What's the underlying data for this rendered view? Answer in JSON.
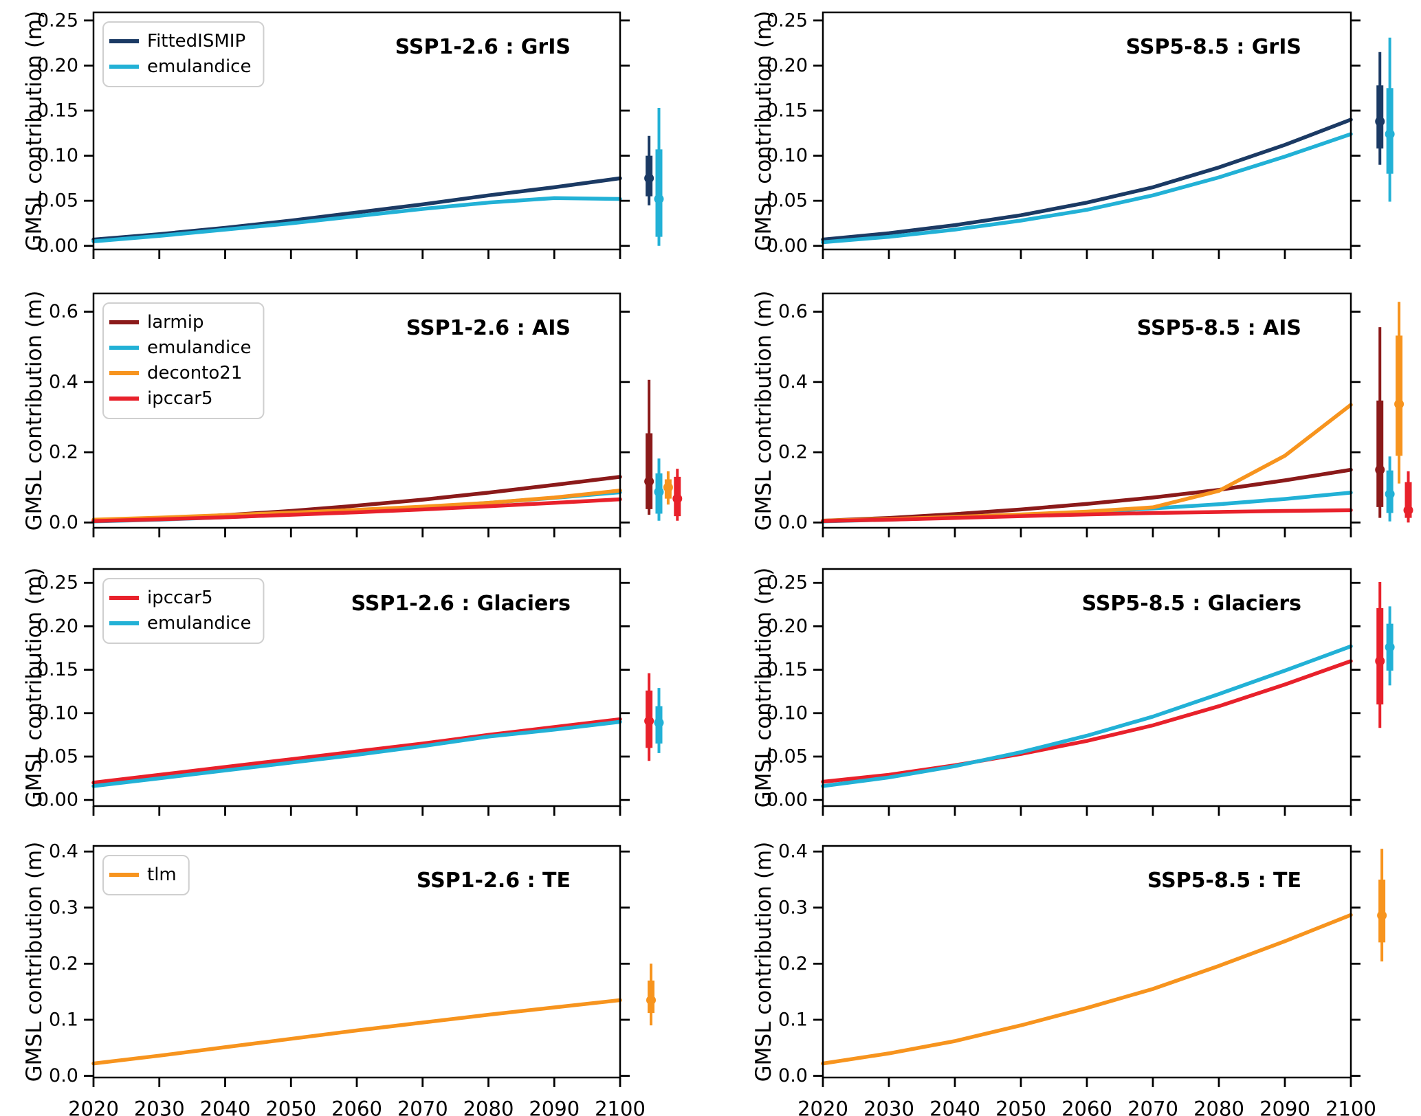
{
  "figure": {
    "kind": "multi-panel line chart figure",
    "shared_ylabel": "GMSL contribution (m)",
    "colors": {
      "FittedISMIP": "#1B3A64",
      "emulandice": "#22B1D6",
      "larmip": "#8B1A1A",
      "deconto21": "#F7941E",
      "ipccar5": "#E8212B",
      "tlm": "#F7941E",
      "axis": "#000000",
      "legend_border": "#CFCFCF",
      "background": "#FFFFFF"
    }
  },
  "chart_data": [
    {
      "type": "line",
      "title": "SSP1-2.6 : GrIS",
      "ylabel": "GMSL contribution (m)",
      "xlim": [
        2020,
        2100
      ],
      "ylim": [
        -0.004,
        0.259
      ],
      "x": [
        2020,
        2030,
        2040,
        2050,
        2060,
        2070,
        2080,
        2090,
        2100
      ],
      "xticks": [
        2020,
        2030,
        2040,
        2050,
        2060,
        2070,
        2080,
        2090,
        2100
      ],
      "xtick_labels": [
        "2020",
        "2030",
        "2040",
        "2050",
        "2060",
        "2070",
        "2080",
        "2090",
        "2100"
      ],
      "show_xtick_labels": false,
      "ytick_values": [
        0.0,
        0.05,
        0.1,
        0.15,
        0.2,
        0.25
      ],
      "ytick_labels": [
        "0.00",
        "0.05",
        "0.10",
        "0.15",
        "0.20",
        "0.25"
      ],
      "show_legend": true,
      "legend_position": "upper left",
      "series": [
        {
          "name": "FittedISMIP",
          "color": "#1B3A64",
          "values": [
            0.007,
            0.013,
            0.02,
            0.028,
            0.037,
            0.046,
            0.056,
            0.065,
            0.075
          ]
        },
        {
          "name": "emulandice",
          "color": "#22B1D6",
          "values": [
            0.005,
            0.011,
            0.018,
            0.025,
            0.033,
            0.041,
            0.048,
            0.053,
            0.052
          ]
        }
      ],
      "errorbars": [
        {
          "name": "FittedISMIP",
          "color": "#1B3A64",
          "x": 2104.4,
          "median": 0.075,
          "box": [
            0.055,
            0.1
          ],
          "whisker": [
            0.045,
            0.122
          ]
        },
        {
          "name": "emulandice",
          "color": "#22B1D6",
          "x": 2105.9,
          "median": 0.052,
          "box": [
            0.01,
            0.107
          ],
          "whisker": [
            0.0,
            0.153
          ]
        }
      ]
    },
    {
      "type": "line",
      "title": "SSP5-8.5 : GrIS",
      "ylabel": "GMSL contribution (m)",
      "xlim": [
        2020,
        2100
      ],
      "ylim": [
        -0.004,
        0.259
      ],
      "x": [
        2020,
        2030,
        2040,
        2050,
        2060,
        2070,
        2080,
        2090,
        2100
      ],
      "xticks": [
        2020,
        2030,
        2040,
        2050,
        2060,
        2070,
        2080,
        2090,
        2100
      ],
      "xtick_labels": [
        "2020",
        "2030",
        "2040",
        "2050",
        "2060",
        "2070",
        "2080",
        "2090",
        "2100"
      ],
      "show_xtick_labels": false,
      "ytick_values": [
        0.0,
        0.05,
        0.1,
        0.15,
        0.2,
        0.25
      ],
      "ytick_labels": [
        "0.00",
        "0.05",
        "0.10",
        "0.15",
        "0.20",
        "0.25"
      ],
      "show_legend": false,
      "series": [
        {
          "name": "FittedISMIP",
          "color": "#1B3A64",
          "values": [
            0.007,
            0.014,
            0.023,
            0.034,
            0.048,
            0.065,
            0.087,
            0.112,
            0.14
          ]
        },
        {
          "name": "emulandice",
          "color": "#22B1D6",
          "values": [
            0.004,
            0.01,
            0.018,
            0.028,
            0.04,
            0.056,
            0.076,
            0.099,
            0.124
          ]
        }
      ],
      "errorbars": [
        {
          "name": "FittedISMIP",
          "color": "#1B3A64",
          "x": 2104.4,
          "median": 0.138,
          "box": [
            0.108,
            0.178
          ],
          "whisker": [
            0.09,
            0.215
          ]
        },
        {
          "name": "emulandice",
          "color": "#22B1D6",
          "x": 2105.9,
          "median": 0.124,
          "box": [
            0.08,
            0.175
          ],
          "whisker": [
            0.049,
            0.231
          ]
        }
      ]
    },
    {
      "type": "line",
      "title": "SSP1-2.6 : AIS",
      "ylabel": "GMSL contribution (m)",
      "xlim": [
        2020,
        2100
      ],
      "ylim": [
        -0.015,
        0.652
      ],
      "x": [
        2020,
        2030,
        2040,
        2050,
        2060,
        2070,
        2080,
        2090,
        2100
      ],
      "xticks": [
        2020,
        2030,
        2040,
        2050,
        2060,
        2070,
        2080,
        2090,
        2100
      ],
      "xtick_labels": [
        "2020",
        "2030",
        "2040",
        "2050",
        "2060",
        "2070",
        "2080",
        "2090",
        "2100"
      ],
      "show_xtick_labels": false,
      "ytick_values": [
        0.0,
        0.2,
        0.4,
        0.6
      ],
      "ytick_labels": [
        "0.0",
        "0.2",
        "0.4",
        "0.6"
      ],
      "show_legend": true,
      "legend_position": "upper left",
      "series": [
        {
          "name": "larmip",
          "color": "#8B1A1A",
          "values": [
            0.004,
            0.011,
            0.021,
            0.033,
            0.048,
            0.065,
            0.085,
            0.107,
            0.13
          ]
        },
        {
          "name": "emulandice",
          "color": "#22B1D6",
          "values": [
            0.003,
            0.008,
            0.015,
            0.023,
            0.032,
            0.043,
            0.056,
            0.07,
            0.086
          ]
        },
        {
          "name": "deconto21",
          "color": "#F7941E",
          "values": [
            0.008,
            0.014,
            0.021,
            0.028,
            0.036,
            0.045,
            0.056,
            0.071,
            0.091
          ]
        },
        {
          "name": "ipccar5",
          "color": "#E8212B",
          "values": [
            0.004,
            0.009,
            0.015,
            0.022,
            0.029,
            0.037,
            0.046,
            0.056,
            0.066
          ]
        }
      ],
      "errorbars": [
        {
          "name": "larmip",
          "color": "#8B1A1A",
          "x": 2104.4,
          "median": 0.117,
          "box": [
            0.038,
            0.254
          ],
          "whisker": [
            0.022,
            0.406
          ]
        },
        {
          "name": "emulandice",
          "color": "#22B1D6",
          "x": 2105.9,
          "median": 0.087,
          "box": [
            0.025,
            0.14
          ],
          "whisker": [
            0.005,
            0.182
          ]
        },
        {
          "name": "deconto21",
          "color": "#F7941E",
          "x": 2107.3,
          "median": 0.1,
          "box": [
            0.068,
            0.123
          ],
          "whisker": [
            0.051,
            0.146
          ]
        },
        {
          "name": "ipccar5",
          "color": "#E8212B",
          "x": 2108.7,
          "median": 0.068,
          "box": [
            0.018,
            0.13
          ],
          "whisker": [
            0.005,
            0.153
          ]
        }
      ]
    },
    {
      "type": "line",
      "title": "SSP5-8.5 : AIS",
      "ylabel": "GMSL contribution (m)",
      "xlim": [
        2020,
        2100
      ],
      "ylim": [
        -0.015,
        0.652
      ],
      "x": [
        2020,
        2030,
        2040,
        2050,
        2060,
        2070,
        2080,
        2090,
        2100
      ],
      "xticks": [
        2020,
        2030,
        2040,
        2050,
        2060,
        2070,
        2080,
        2090,
        2100
      ],
      "xtick_labels": [
        "2020",
        "2030",
        "2040",
        "2050",
        "2060",
        "2070",
        "2080",
        "2090",
        "2100"
      ],
      "show_xtick_labels": false,
      "ytick_values": [
        0.0,
        0.2,
        0.4,
        0.6
      ],
      "ytick_labels": [
        "0.0",
        "0.2",
        "0.4",
        "0.6"
      ],
      "show_legend": false,
      "series": [
        {
          "name": "larmip",
          "color": "#8B1A1A",
          "values": [
            0.005,
            0.013,
            0.024,
            0.037,
            0.053,
            0.071,
            0.093,
            0.12,
            0.15
          ]
        },
        {
          "name": "emulandice",
          "color": "#22B1D6",
          "values": [
            0.003,
            0.008,
            0.014,
            0.021,
            0.03,
            0.04,
            0.052,
            0.067,
            0.085
          ]
        },
        {
          "name": "deconto21",
          "color": "#F7941E",
          "values": [
            0.005,
            0.01,
            0.016,
            0.023,
            0.031,
            0.043,
            0.09,
            0.19,
            0.335
          ]
        },
        {
          "name": "ipccar5",
          "color": "#E8212B",
          "values": [
            0.004,
            0.008,
            0.013,
            0.018,
            0.023,
            0.027,
            0.03,
            0.033,
            0.035
          ]
        }
      ],
      "errorbars": [
        {
          "name": "larmip",
          "color": "#8B1A1A",
          "x": 2104.4,
          "median": 0.15,
          "box": [
            0.044,
            0.347
          ],
          "whisker": [
            0.013,
            0.556
          ]
        },
        {
          "name": "emulandice",
          "color": "#22B1D6",
          "x": 2105.9,
          "median": 0.081,
          "box": [
            0.027,
            0.148
          ],
          "whisker": [
            0.003,
            0.188
          ]
        },
        {
          "name": "deconto21",
          "color": "#F7941E",
          "x": 2107.3,
          "median": 0.337,
          "box": [
            0.19,
            0.532
          ],
          "whisker": [
            0.111,
            0.628
          ]
        },
        {
          "name": "ipccar5",
          "color": "#E8212B",
          "x": 2108.7,
          "median": 0.035,
          "box": [
            0.013,
            0.115
          ],
          "whisker": [
            0.0,
            0.146
          ]
        }
      ]
    },
    {
      "type": "line",
      "title": "SSP1-2.6 : Glaciers",
      "ylabel": "GMSL contribution (m)",
      "xlim": [
        2020,
        2100
      ],
      "ylim": [
        -0.007,
        0.266
      ],
      "x": [
        2020,
        2030,
        2040,
        2050,
        2060,
        2070,
        2080,
        2090,
        2100
      ],
      "xticks": [
        2020,
        2030,
        2040,
        2050,
        2060,
        2070,
        2080,
        2090,
        2100
      ],
      "xtick_labels": [
        "2020",
        "2030",
        "2040",
        "2050",
        "2060",
        "2070",
        "2080",
        "2090",
        "2100"
      ],
      "show_xtick_labels": false,
      "ytick_values": [
        0.0,
        0.05,
        0.1,
        0.15,
        0.2,
        0.25
      ],
      "ytick_labels": [
        "0.00",
        "0.05",
        "0.10",
        "0.15",
        "0.20",
        "0.25"
      ],
      "show_legend": true,
      "legend_position": "upper left",
      "series": [
        {
          "name": "ipccar5",
          "color": "#E8212B",
          "values": [
            0.02,
            0.029,
            0.038,
            0.047,
            0.056,
            0.065,
            0.075,
            0.084,
            0.093
          ]
        },
        {
          "name": "emulandice",
          "color": "#22B1D6",
          "values": [
            0.016,
            0.025,
            0.034,
            0.043,
            0.052,
            0.062,
            0.073,
            0.081,
            0.09
          ]
        }
      ],
      "errorbars": [
        {
          "name": "ipccar5",
          "color": "#E8212B",
          "x": 2104.4,
          "median": 0.091,
          "box": [
            0.06,
            0.126
          ],
          "whisker": [
            0.045,
            0.146
          ]
        },
        {
          "name": "emulandice",
          "color": "#22B1D6",
          "x": 2105.9,
          "median": 0.089,
          "box": [
            0.065,
            0.108
          ],
          "whisker": [
            0.054,
            0.129
          ]
        }
      ]
    },
    {
      "type": "line",
      "title": "SSP5-8.5 : Glaciers",
      "ylabel": "GMSL contribution (m)",
      "xlim": [
        2020,
        2100
      ],
      "ylim": [
        -0.007,
        0.266
      ],
      "x": [
        2020,
        2030,
        2040,
        2050,
        2060,
        2070,
        2080,
        2090,
        2100
      ],
      "xticks": [
        2020,
        2030,
        2040,
        2050,
        2060,
        2070,
        2080,
        2090,
        2100
      ],
      "xtick_labels": [
        "2020",
        "2030",
        "2040",
        "2050",
        "2060",
        "2070",
        "2080",
        "2090",
        "2100"
      ],
      "show_xtick_labels": false,
      "ytick_values": [
        0.0,
        0.05,
        0.1,
        0.15,
        0.2,
        0.25
      ],
      "ytick_labels": [
        "0.00",
        "0.05",
        "0.10",
        "0.15",
        "0.20",
        "0.25"
      ],
      "show_legend": false,
      "series": [
        {
          "name": "ipccar5",
          "color": "#E8212B",
          "values": [
            0.021,
            0.029,
            0.04,
            0.053,
            0.068,
            0.086,
            0.108,
            0.133,
            0.16
          ]
        },
        {
          "name": "emulandice",
          "color": "#22B1D6",
          "values": [
            0.016,
            0.026,
            0.039,
            0.055,
            0.074,
            0.096,
            0.122,
            0.149,
            0.177
          ]
        }
      ],
      "errorbars": [
        {
          "name": "ipccar5",
          "color": "#E8212B",
          "x": 2104.4,
          "median": 0.16,
          "box": [
            0.11,
            0.221
          ],
          "whisker": [
            0.083,
            0.251
          ]
        },
        {
          "name": "emulandice",
          "color": "#22B1D6",
          "x": 2105.9,
          "median": 0.176,
          "box": [
            0.149,
            0.203
          ],
          "whisker": [
            0.132,
            0.223
          ]
        }
      ]
    },
    {
      "type": "line",
      "title": "SSP1-2.6 : TE",
      "ylabel": "GMSL contribution (m)",
      "xlim": [
        2020,
        2100
      ],
      "ylim": [
        -0.003,
        0.41
      ],
      "x": [
        2020,
        2030,
        2040,
        2050,
        2060,
        2070,
        2080,
        2090,
        2100
      ],
      "xticks": [
        2020,
        2030,
        2040,
        2050,
        2060,
        2070,
        2080,
        2090,
        2100
      ],
      "xtick_labels": [
        "2020",
        "2030",
        "2040",
        "2050",
        "2060",
        "2070",
        "2080",
        "2090",
        "2100"
      ],
      "show_xtick_labels": true,
      "ytick_values": [
        0.0,
        0.1,
        0.2,
        0.3,
        0.4
      ],
      "ytick_labels": [
        "0.0",
        "0.1",
        "0.2",
        "0.3",
        "0.4"
      ],
      "show_legend": true,
      "legend_position": "upper left",
      "series": [
        {
          "name": "tlm",
          "color": "#F7941E",
          "values": [
            0.022,
            0.036,
            0.051,
            0.066,
            0.081,
            0.095,
            0.109,
            0.122,
            0.135
          ]
        }
      ],
      "errorbars": [
        {
          "name": "tlm",
          "color": "#F7941E",
          "x": 2104.7,
          "median": 0.135,
          "box": [
            0.112,
            0.17
          ],
          "whisker": [
            0.09,
            0.2
          ]
        }
      ]
    },
    {
      "type": "line",
      "title": "SSP5-8.5 : TE",
      "ylabel": "GMSL contribution (m)",
      "xlim": [
        2020,
        2100
      ],
      "ylim": [
        -0.003,
        0.41
      ],
      "x": [
        2020,
        2030,
        2040,
        2050,
        2060,
        2070,
        2080,
        2090,
        2100
      ],
      "xticks": [
        2020,
        2030,
        2040,
        2050,
        2060,
        2070,
        2080,
        2090,
        2100
      ],
      "xtick_labels": [
        "2020",
        "2030",
        "2040",
        "2050",
        "2060",
        "2070",
        "2080",
        "2090",
        "2100"
      ],
      "show_xtick_labels": true,
      "ytick_values": [
        0.0,
        0.1,
        0.2,
        0.3,
        0.4
      ],
      "ytick_labels": [
        "0.0",
        "0.1",
        "0.2",
        "0.3",
        "0.4"
      ],
      "show_legend": false,
      "series": [
        {
          "name": "tlm",
          "color": "#F7941E",
          "values": [
            0.022,
            0.04,
            0.062,
            0.09,
            0.121,
            0.155,
            0.196,
            0.24,
            0.287
          ]
        }
      ],
      "errorbars": [
        {
          "name": "tlm",
          "color": "#F7941E",
          "x": 2104.7,
          "median": 0.286,
          "box": [
            0.238,
            0.35
          ],
          "whisker": [
            0.204,
            0.405
          ]
        }
      ]
    }
  ]
}
